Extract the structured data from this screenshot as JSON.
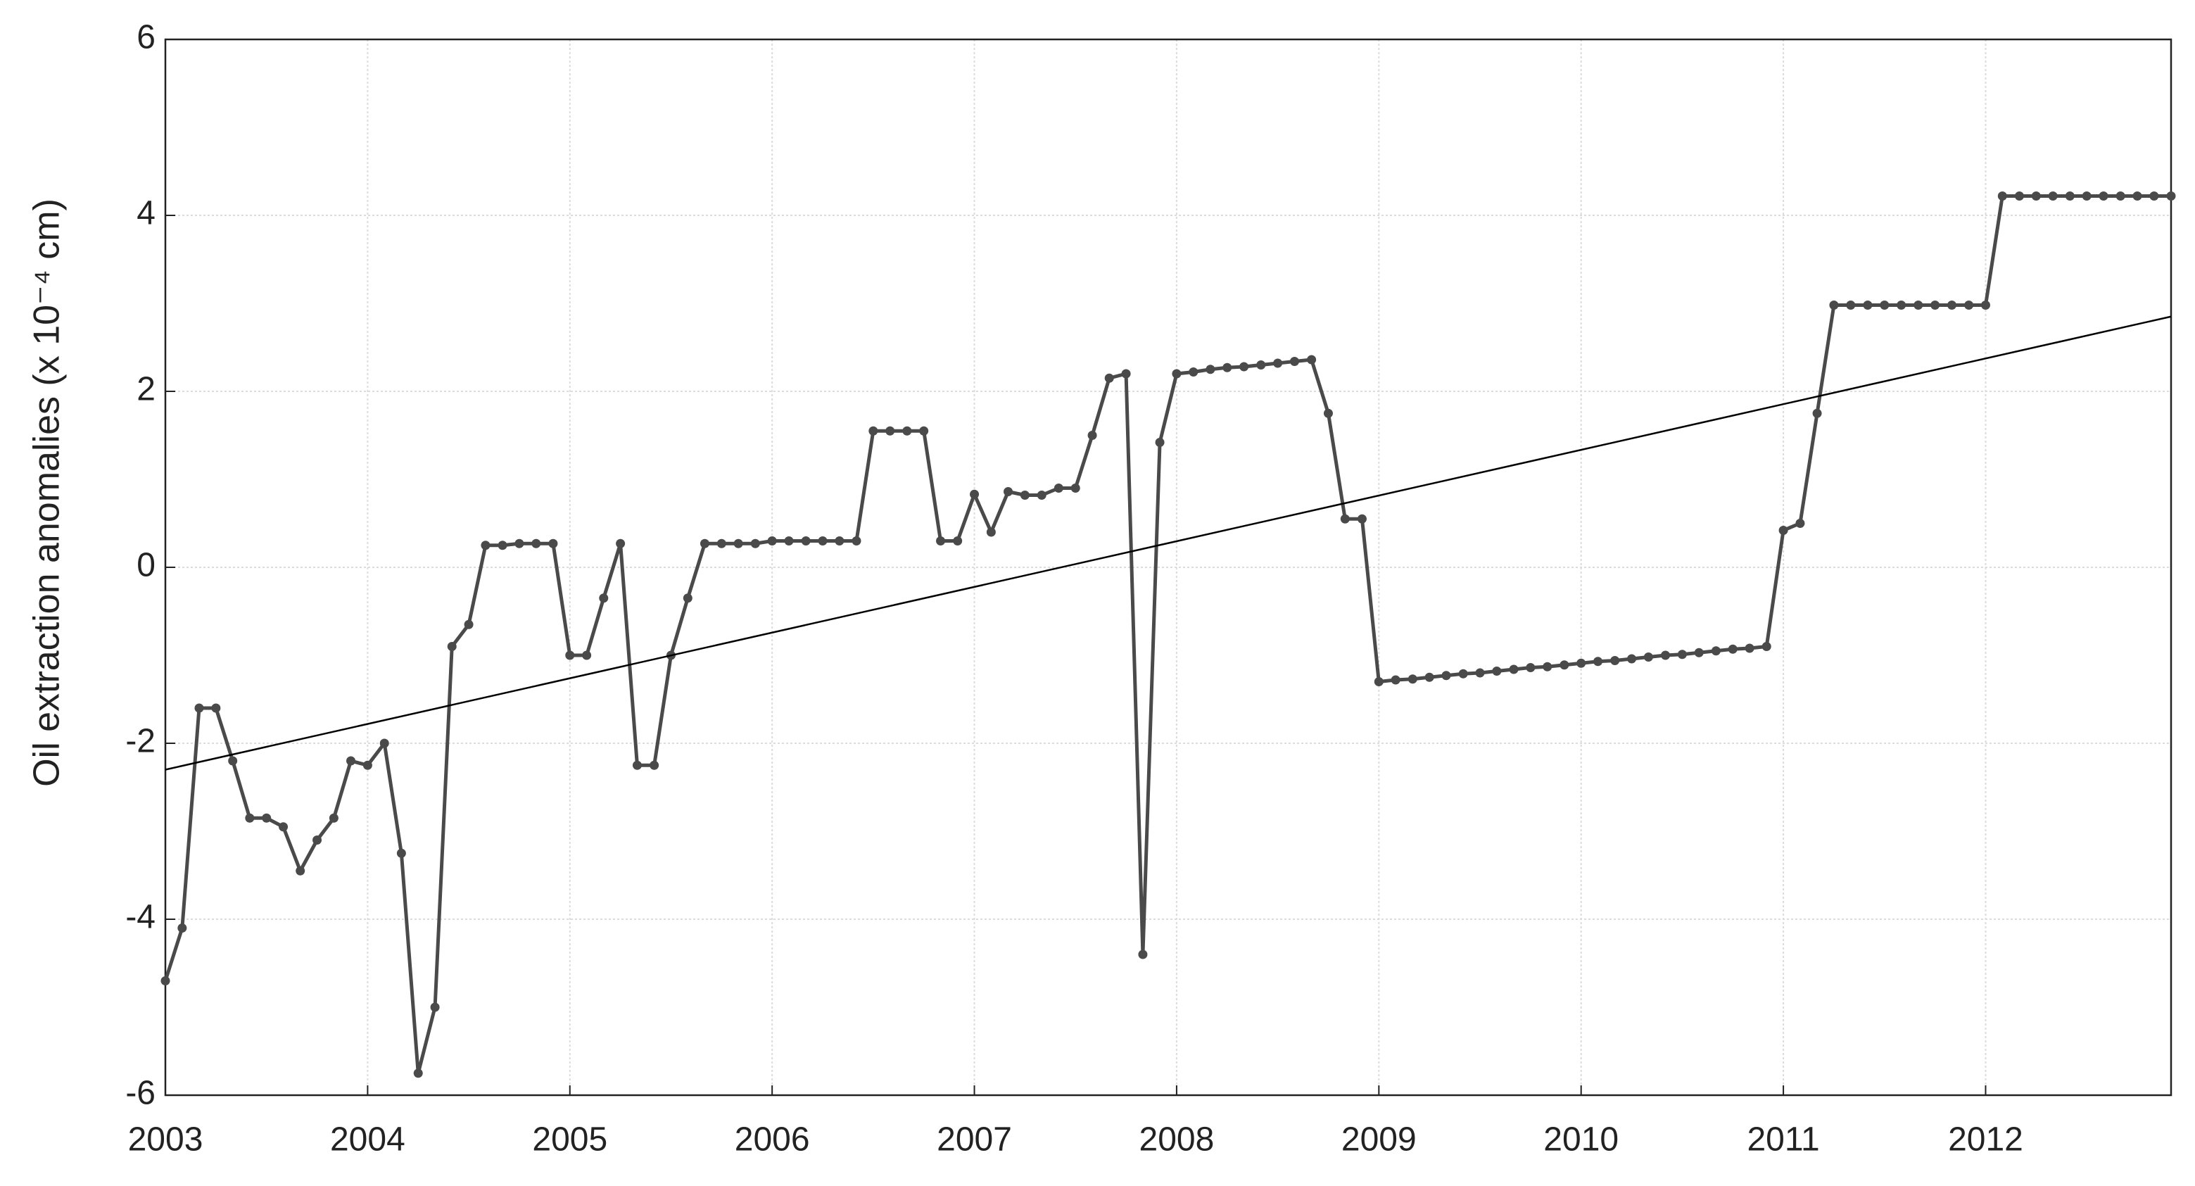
{
  "chart_data": {
    "type": "line",
    "ylabel": "Oil extraction anomalies (x 10⁻⁴ cm)",
    "x": [
      2003,
      2003.083,
      2003.167,
      2003.25,
      2003.333,
      2003.417,
      2003.5,
      2003.583,
      2003.667,
      2003.75,
      2003.833,
      2003.917,
      2004,
      2004.083,
      2004.167,
      2004.25,
      2004.333,
      2004.417,
      2004.5,
      2004.583,
      2004.667,
      2004.75,
      2004.833,
      2004.917,
      2005,
      2005.083,
      2005.167,
      2005.25,
      2005.333,
      2005.417,
      2005.5,
      2005.583,
      2005.667,
      2005.75,
      2005.833,
      2005.917,
      2006,
      2006.083,
      2006.167,
      2006.25,
      2006.333,
      2006.417,
      2006.5,
      2006.583,
      2006.667,
      2006.75,
      2006.833,
      2006.917,
      2007,
      2007.083,
      2007.167,
      2007.25,
      2007.333,
      2007.417,
      2007.5,
      2007.583,
      2007.667,
      2007.75,
      2007.833,
      2007.917,
      2008,
      2008.083,
      2008.167,
      2008.25,
      2008.333,
      2008.417,
      2008.5,
      2008.583,
      2008.667,
      2008.75,
      2008.833,
      2008.917,
      2009,
      2009.083,
      2009.167,
      2009.25,
      2009.333,
      2009.417,
      2009.5,
      2009.583,
      2009.667,
      2009.75,
      2009.833,
      2009.917,
      2010,
      2010.083,
      2010.167,
      2010.25,
      2010.333,
      2010.417,
      2010.5,
      2010.583,
      2010.667,
      2010.75,
      2010.833,
      2010.917,
      2011,
      2011.083,
      2011.167,
      2011.25,
      2011.333,
      2011.417,
      2011.5,
      2011.583,
      2011.667,
      2011.75,
      2011.833,
      2011.917,
      2012,
      2012.083,
      2012.167,
      2012.25,
      2012.333,
      2012.417,
      2012.5,
      2012.583,
      2012.667,
      2012.75,
      2012.833,
      2012.917
    ],
    "series": [
      {
        "color": "#4a4a4a",
        "values": [
          -4.7,
          -4.1,
          -1.6,
          -1.6,
          -2.2,
          -2.85,
          -2.85,
          -2.95,
          -3.45,
          -3.1,
          -2.85,
          -2.2,
          -2.25,
          -2.0,
          -3.25,
          -5.75,
          -5.0,
          -0.9,
          -0.65,
          0.25,
          0.25,
          0.27,
          0.27,
          0.27,
          -1.0,
          -1.0,
          -0.35,
          0.27,
          -2.25,
          -2.25,
          -1.0,
          -0.35,
          0.27,
          0.27,
          0.27,
          0.27,
          0.3,
          0.3,
          0.3,
          0.3,
          0.3,
          0.3,
          1.55,
          1.55,
          1.55,
          1.55,
          0.3,
          0.3,
          0.83,
          0.4,
          0.86,
          0.82,
          0.82,
          0.9,
          0.9,
          1.5,
          2.15,
          2.2,
          -4.4,
          1.42,
          2.2,
          2.22,
          2.25,
          2.27,
          2.28,
          2.3,
          2.32,
          2.34,
          2.36,
          1.75,
          0.55,
          0.55,
          -1.3,
          -1.28,
          -1.27,
          -1.25,
          -1.23,
          -1.21,
          -1.2,
          -1.18,
          -1.16,
          -1.14,
          -1.13,
          -1.11,
          -1.09,
          -1.07,
          -1.06,
          -1.04,
          -1.02,
          -1.0,
          -0.99,
          -0.97,
          -0.95,
          -0.93,
          -0.92,
          -0.9,
          0.42,
          0.5,
          1.75,
          2.98,
          2.98,
          2.98,
          2.98,
          2.98,
          2.98,
          2.98,
          2.98,
          2.98,
          2.98,
          4.22,
          4.22,
          4.22,
          4.22,
          4.22,
          4.22,
          4.22,
          4.22,
          4.22,
          4.22,
          4.22
        ]
      }
    ],
    "trend": {
      "color": "#000000",
      "x": [
        2003,
        2012.917
      ],
      "values": [
        -2.3,
        2.85
      ]
    },
    "xlim": [
      2003,
      2012.917
    ],
    "xticks": [
      2003,
      2004,
      2005,
      2006,
      2007,
      2008,
      2009,
      2010,
      2011,
      2012
    ],
    "ylim": [
      -6,
      6
    ],
    "yticks": [
      -6,
      -4,
      -2,
      0,
      2,
      4,
      6
    ],
    "grid": true
  }
}
